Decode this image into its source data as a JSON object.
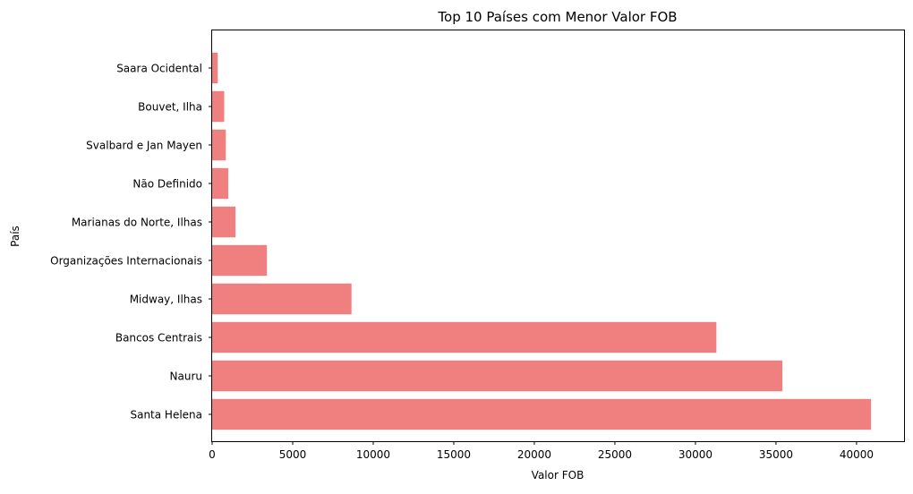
{
  "chart_data": {
    "type": "bar",
    "orientation": "horizontal",
    "title": "Top 10 Países com Menor Valor FOB",
    "xlabel": "Valor FOB",
    "ylabel": "País",
    "categories": [
      "Santa Helena",
      "Nauru",
      "Bancos Centrais",
      "Midway, Ilhas",
      "Organizações Internacionais",
      "Marianas do Norte, Ilhas",
      "Não Definido",
      "Svalbard e Jan Mayen",
      "Bouvet, Ilha",
      "Saara Ocidental"
    ],
    "values": [
      40900,
      35400,
      31300,
      8650,
      3400,
      1450,
      1000,
      850,
      750,
      350
    ],
    "xlim": [
      0,
      42950
    ],
    "xticks": [
      0,
      5000,
      10000,
      15000,
      20000,
      25000,
      30000,
      35000,
      40000
    ],
    "xtick_labels": [
      "0",
      "5000",
      "10000",
      "15000",
      "20000",
      "25000",
      "30000",
      "35000",
      "40000"
    ],
    "grid": false,
    "legend": false,
    "bar_color": "#f08080"
  }
}
